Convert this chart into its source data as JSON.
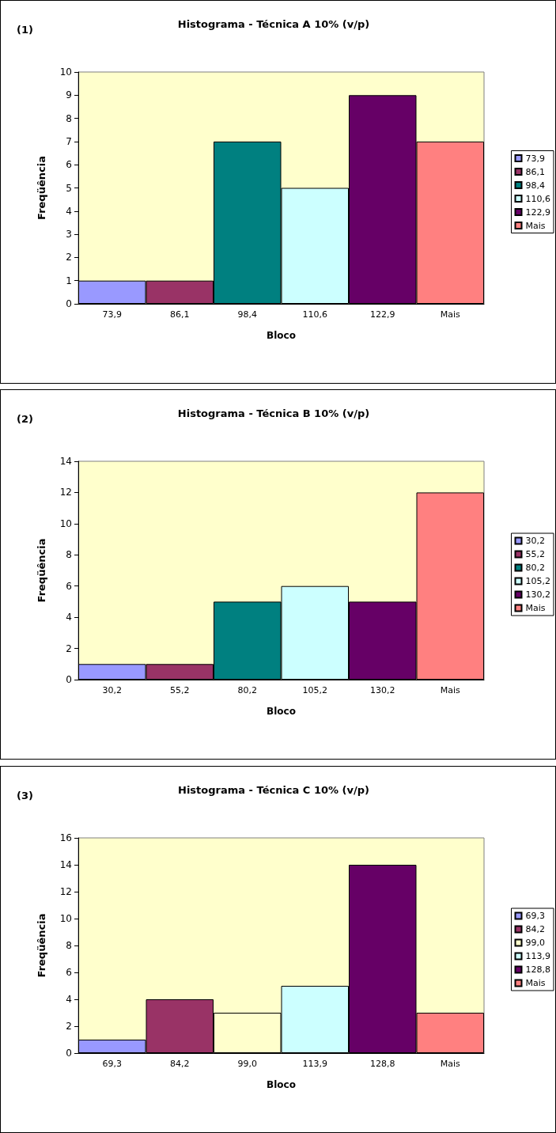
{
  "chart_data": [
    {
      "type": "bar",
      "title": "Histograma - Técnica A 10% (v/p)",
      "annotations": [
        "(1)"
      ],
      "xlabel": "Bloco",
      "ylabel": "Freqüência",
      "categories": [
        "73,9",
        "86,1",
        "98,4",
        "110,6",
        "122,9",
        "Mais"
      ],
      "series": [
        {
          "name": "73,9",
          "color": "#9999ff",
          "values": [
            1,
            null,
            null,
            null,
            null,
            null
          ]
        },
        {
          "name": "86,1",
          "color": "#993366",
          "values": [
            null,
            1,
            null,
            null,
            null,
            null
          ]
        },
        {
          "name": "98,4",
          "color": "#008080",
          "values": [
            null,
            null,
            7,
            null,
            null,
            null
          ]
        },
        {
          "name": "110,6",
          "color": "#ccffff",
          "values": [
            null,
            null,
            null,
            5,
            null,
            null
          ]
        },
        {
          "name": "122,9",
          "color": "#660066",
          "values": [
            null,
            null,
            null,
            null,
            9,
            null
          ]
        },
        {
          "name": "Mais",
          "color": "#ff8080",
          "values": [
            null,
            null,
            null,
            null,
            null,
            7
          ]
        }
      ],
      "ylim": [
        0,
        10
      ],
      "yticks": [
        0,
        1,
        2,
        3,
        4,
        5,
        6,
        7,
        8,
        9,
        10
      ],
      "legend": "right"
    },
    {
      "type": "bar",
      "title": "Histograma - Técnica B 10% (v/p)",
      "annotations": [
        "(2)"
      ],
      "xlabel": "Bloco",
      "ylabel": "Freqüência",
      "categories": [
        "30,2",
        "55,2",
        "80,2",
        "105,2",
        "130,2",
        "Mais"
      ],
      "series": [
        {
          "name": "30,2",
          "color": "#9999ff",
          "values": [
            1,
            null,
            null,
            null,
            null,
            null
          ]
        },
        {
          "name": "55,2",
          "color": "#993366",
          "values": [
            null,
            1,
            null,
            null,
            null,
            null
          ]
        },
        {
          "name": "80,2",
          "color": "#008080",
          "values": [
            null,
            null,
            5,
            null,
            null,
            null
          ]
        },
        {
          "name": "105,2",
          "color": "#ccffff",
          "values": [
            null,
            null,
            null,
            6,
            null,
            null
          ]
        },
        {
          "name": "130,2",
          "color": "#660066",
          "values": [
            null,
            null,
            null,
            null,
            5,
            null
          ]
        },
        {
          "name": "Mais",
          "color": "#ff8080",
          "values": [
            null,
            null,
            null,
            null,
            null,
            12
          ]
        }
      ],
      "ylim": [
        0,
        14
      ],
      "yticks": [
        0,
        2,
        4,
        6,
        8,
        10,
        12,
        14
      ],
      "legend": "right"
    },
    {
      "type": "bar",
      "title": "Histograma - Técnica C 10% (v/p)",
      "annotations": [
        "(3)"
      ],
      "xlabel": "Bloco",
      "ylabel": "Freqüência",
      "categories": [
        "69,3",
        "84,2",
        "99,0",
        "113,9",
        "128,8",
        "Mais"
      ],
      "series": [
        {
          "name": "69,3",
          "color": "#9999ff",
          "values": [
            1,
            null,
            null,
            null,
            null,
            null
          ]
        },
        {
          "name": "84,2",
          "color": "#993366",
          "values": [
            null,
            4,
            null,
            null,
            null,
            null
          ]
        },
        {
          "name": "99,0",
          "color": "#ffffcc",
          "values": [
            null,
            null,
            3,
            null,
            null,
            null
          ]
        },
        {
          "name": "113,9",
          "color": "#ccffff",
          "values": [
            null,
            null,
            null,
            5,
            null,
            null
          ]
        },
        {
          "name": "128,8",
          "color": "#660066",
          "values": [
            null,
            null,
            null,
            null,
            14,
            null
          ]
        },
        {
          "name": "Mais",
          "color": "#ff8080",
          "values": [
            null,
            null,
            null,
            null,
            null,
            3
          ]
        }
      ],
      "ylim": [
        0,
        16
      ],
      "yticks": [
        0,
        2,
        4,
        6,
        8,
        10,
        12,
        14,
        16
      ],
      "legend": "right"
    }
  ]
}
